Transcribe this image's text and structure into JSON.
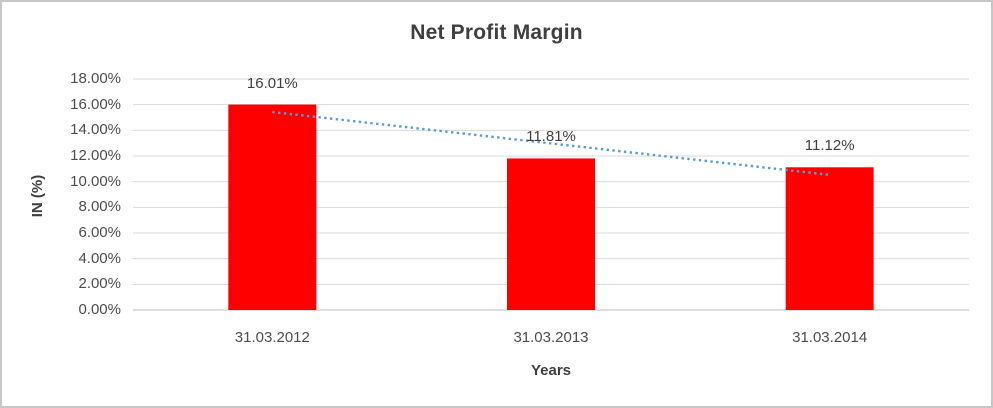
{
  "chart_data": {
    "type": "bar",
    "title": "Net Profit Margin",
    "xlabel": "Years",
    "ylabel": "IN (%)",
    "categories": [
      "31.03.2012",
      "31.03.2013",
      "31.03.2014"
    ],
    "values": [
      16.01,
      11.81,
      11.12
    ],
    "data_labels": [
      "16.01%",
      "11.81%",
      "11.12%"
    ],
    "ylim": [
      0,
      18
    ],
    "ytick_step": 2,
    "yticks": [
      {
        "value": 0,
        "label": "0.00%"
      },
      {
        "value": 2,
        "label": "2.00%"
      },
      {
        "value": 4,
        "label": "4.00%"
      },
      {
        "value": 6,
        "label": "6.00%"
      },
      {
        "value": 8,
        "label": "8.00%"
      },
      {
        "value": 10,
        "label": "10.00%"
      },
      {
        "value": 12,
        "label": "12.00%"
      },
      {
        "value": 14,
        "label": "14.00%"
      },
      {
        "value": 16,
        "label": "16.00%"
      },
      {
        "value": 18,
        "label": "18.00%"
      }
    ],
    "grid": true,
    "legend": "none",
    "trendline": {
      "type": "linear",
      "style": "dotted",
      "endpoint_values": [
        15.43,
        10.53
      ],
      "color": "#5B9BD5"
    },
    "colors": {
      "bar": "#FF0000",
      "gridline": "#D9D9D9",
      "baseline": "#BFBFBF",
      "tick_text": "#4D4D4D",
      "title_text": "#3F3F3F",
      "label_text": "#404040",
      "frame_border": "#C7C7C7",
      "background": "#FFFFFF"
    }
  }
}
